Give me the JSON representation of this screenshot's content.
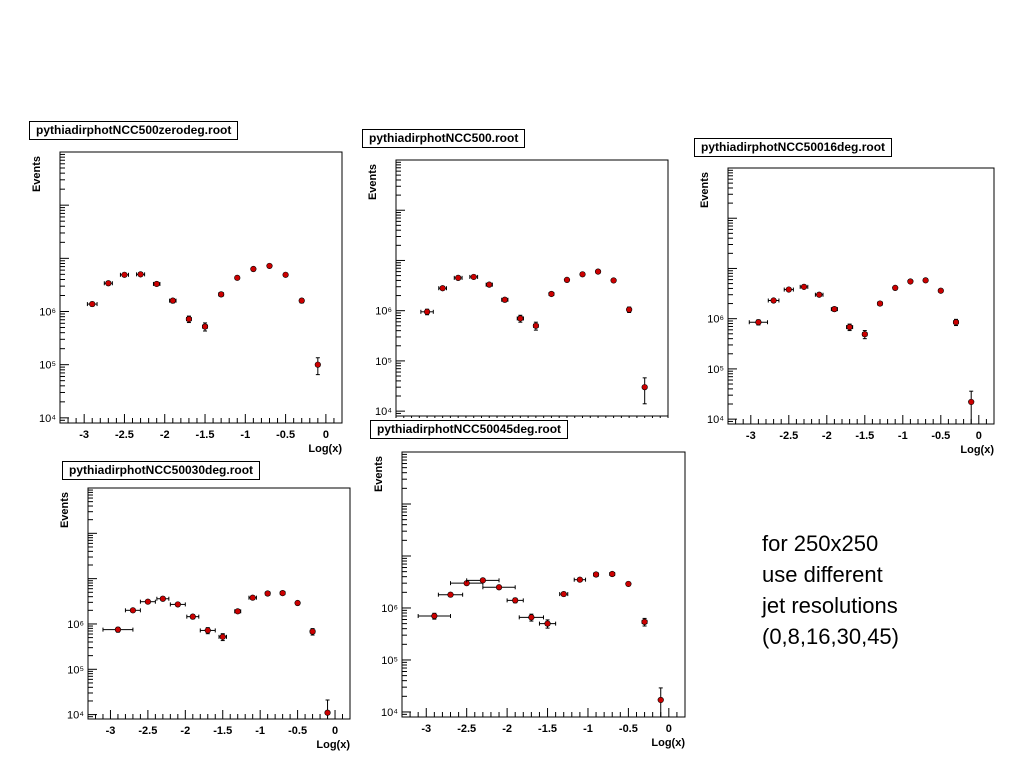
{
  "note": {
    "lines": [
      "for 250x250",
      "use different",
      "jet resolutions",
      "(0,8,16,30,45)"
    ]
  },
  "chart_data": [
    {
      "type": "scatter",
      "title": "pythiadirphotNCC500zerodeg.root",
      "xlabel": "Log(x)",
      "ylabel": "Events",
      "xlim": [
        -3.3,
        0.2
      ],
      "ylim": [
        8000,
        1000000000
      ],
      "yscale": "log",
      "xticks": [
        -3,
        -2.5,
        -2,
        -1.5,
        -1,
        -0.5,
        0
      ],
      "yticks": [
        {
          "value": 10000,
          "label": "10⁴"
        },
        {
          "value": 100000,
          "label": "10⁵"
        },
        {
          "value": 1000000,
          "label": "10⁶"
        }
      ],
      "marker_color": "#cc0000",
      "points": [
        {
          "x": -2.9,
          "y": 1380000,
          "xerr": 0.06,
          "yerr": 120000
        },
        {
          "x": -2.7,
          "y": 3400000,
          "xerr": 0.05,
          "yerr": 200000
        },
        {
          "x": -2.5,
          "y": 4900000,
          "xerr": 0.05,
          "yerr": 250000
        },
        {
          "x": -2.3,
          "y": 5000000,
          "xerr": 0.05,
          "yerr": 250000
        },
        {
          "x": -2.1,
          "y": 3300000,
          "xerr": 0.04,
          "yerr": 180000
        },
        {
          "x": -1.9,
          "y": 1600000,
          "xerr": 0.04,
          "yerr": 150000
        },
        {
          "x": -1.7,
          "y": 720000,
          "xerr": 0.03,
          "yerr": 100000
        },
        {
          "x": -1.5,
          "y": 520000,
          "xerr": 0.03,
          "yerr": 90000
        },
        {
          "x": -1.3,
          "y": 2100000,
          "xerr": 0.03,
          "yerr": 150000
        },
        {
          "x": -1.1,
          "y": 4300000,
          "xerr": 0.02,
          "yerr": 200000
        },
        {
          "x": -0.9,
          "y": 6300000,
          "xerr": 0.02,
          "yerr": 250000
        },
        {
          "x": -0.7,
          "y": 7200000,
          "xerr": 0.02,
          "yerr": 250000
        },
        {
          "x": -0.5,
          "y": 4900000,
          "xerr": 0.02,
          "yerr": 200000
        },
        {
          "x": -0.3,
          "y": 1600000,
          "xerr": 0.02,
          "yerr": 150000
        },
        {
          "x": -0.1,
          "y": 100000,
          "xerr": 0.01,
          "yerr": 35000
        }
      ]
    },
    {
      "type": "scatter",
      "title": "pythiadirphotNCC500.root",
      "xlabel": "",
      "ylabel": "Events",
      "xlim": [
        -3.3,
        0.2
      ],
      "ylim": [
        8000,
        1000000000
      ],
      "yscale": "log",
      "xticks": [],
      "yticks": [
        {
          "value": 10000,
          "label": "10⁴"
        },
        {
          "value": 100000,
          "label": "10⁵"
        },
        {
          "value": 1000000,
          "label": "10⁶"
        }
      ],
      "marker_color": "#cc0000",
      "points": [
        {
          "x": -2.9,
          "y": 950000,
          "xerr": 0.08,
          "yerr": 120000
        },
        {
          "x": -2.7,
          "y": 2800000,
          "xerr": 0.05,
          "yerr": 200000
        },
        {
          "x": -2.5,
          "y": 4500000,
          "xerr": 0.05,
          "yerr": 250000
        },
        {
          "x": -2.3,
          "y": 4700000,
          "xerr": 0.05,
          "yerr": 250000
        },
        {
          "x": -2.1,
          "y": 3300000,
          "xerr": 0.04,
          "yerr": 180000
        },
        {
          "x": -1.9,
          "y": 1650000,
          "xerr": 0.04,
          "yerr": 150000
        },
        {
          "x": -1.7,
          "y": 700000,
          "xerr": 0.04,
          "yerr": 110000
        },
        {
          "x": -1.5,
          "y": 500000,
          "xerr": 0.03,
          "yerr": 90000
        },
        {
          "x": -1.3,
          "y": 2150000,
          "xerr": 0.03,
          "yerr": 150000
        },
        {
          "x": -1.1,
          "y": 4100000,
          "xerr": 0.02,
          "yerr": 200000
        },
        {
          "x": -0.9,
          "y": 5300000,
          "xerr": 0.02,
          "yerr": 250000
        },
        {
          "x": -0.7,
          "y": 6000000,
          "xerr": 0.02,
          "yerr": 250000
        },
        {
          "x": -0.5,
          "y": 4000000,
          "xerr": 0.02,
          "yerr": 200000
        },
        {
          "x": -0.3,
          "y": 1050000,
          "xerr": 0.02,
          "yerr": 130000
        },
        {
          "x": -0.1,
          "y": 30000,
          "xerr": 0.01,
          "yerr": 16000
        }
      ]
    },
    {
      "type": "scatter",
      "title": "pythiadirphotNCC50016deg.root",
      "xlabel": "Log(x)",
      "ylabel": "Events",
      "xlim": [
        -3.3,
        0.2
      ],
      "ylim": [
        8000,
        1000000000
      ],
      "yscale": "log",
      "xticks": [
        -3,
        -2.5,
        -2,
        -1.5,
        -1,
        -0.5,
        0
      ],
      "yticks": [
        {
          "value": 10000,
          "label": "10⁴"
        },
        {
          "value": 100000,
          "label": "10⁵"
        },
        {
          "value": 1000000,
          "label": "10⁶"
        }
      ],
      "marker_color": "#cc0000",
      "points": [
        {
          "x": -2.9,
          "y": 850000,
          "xerr": 0.12,
          "yerr": 100000
        },
        {
          "x": -2.7,
          "y": 2300000,
          "xerr": 0.07,
          "yerr": 180000
        },
        {
          "x": -2.5,
          "y": 3800000,
          "xerr": 0.06,
          "yerr": 220000
        },
        {
          "x": -2.3,
          "y": 4300000,
          "xerr": 0.05,
          "yerr": 240000
        },
        {
          "x": -2.1,
          "y": 3000000,
          "xerr": 0.05,
          "yerr": 180000
        },
        {
          "x": -1.9,
          "y": 1550000,
          "xerr": 0.04,
          "yerr": 150000
        },
        {
          "x": -1.7,
          "y": 680000,
          "xerr": 0.04,
          "yerr": 100000
        },
        {
          "x": -1.5,
          "y": 490000,
          "xerr": 0.03,
          "yerr": 90000
        },
        {
          "x": -1.3,
          "y": 2000000,
          "xerr": 0.03,
          "yerr": 150000
        },
        {
          "x": -1.1,
          "y": 4100000,
          "xerr": 0.02,
          "yerr": 200000
        },
        {
          "x": -0.9,
          "y": 5500000,
          "xerr": 0.02,
          "yerr": 250000
        },
        {
          "x": -0.7,
          "y": 5800000,
          "xerr": 0.02,
          "yerr": 250000
        },
        {
          "x": -0.5,
          "y": 3600000,
          "xerr": 0.02,
          "yerr": 200000
        },
        {
          "x": -0.3,
          "y": 850000,
          "xerr": 0.03,
          "yerr": 120000
        },
        {
          "x": -0.1,
          "y": 22000,
          "xerr": 0.01,
          "yerr": 14000
        }
      ]
    },
    {
      "type": "scatter",
      "title": "pythiadirphotNCC50030deg.root",
      "xlabel": "Log(x)",
      "ylabel": "Events",
      "xlim": [
        -3.3,
        0.2
      ],
      "ylim": [
        8000,
        1000000000
      ],
      "yscale": "log",
      "xticks": [
        -3,
        -2.5,
        -2,
        -1.5,
        -1,
        -0.5,
        0
      ],
      "yticks": [
        {
          "value": 10000,
          "label": "10⁴"
        },
        {
          "value": 100000,
          "label": "10⁵"
        },
        {
          "value": 1000000,
          "label": "10⁶"
        }
      ],
      "marker_color": "#cc0000",
      "points": [
        {
          "x": -2.9,
          "y": 750000,
          "xerr": 0.2,
          "yerr": 90000
        },
        {
          "x": -2.7,
          "y": 2000000,
          "xerr": 0.1,
          "yerr": 150000
        },
        {
          "x": -2.5,
          "y": 3100000,
          "xerr": 0.1,
          "yerr": 200000
        },
        {
          "x": -2.3,
          "y": 3600000,
          "xerr": 0.08,
          "yerr": 220000
        },
        {
          "x": -2.1,
          "y": 2700000,
          "xerr": 0.1,
          "yerr": 180000
        },
        {
          "x": -1.9,
          "y": 1450000,
          "xerr": 0.08,
          "yerr": 150000
        },
        {
          "x": -1.7,
          "y": 720000,
          "xerr": 0.1,
          "yerr": 110000
        },
        {
          "x": -1.5,
          "y": 520000,
          "xerr": 0.05,
          "yerr": 90000
        },
        {
          "x": -1.3,
          "y": 1900000,
          "xerr": 0.04,
          "yerr": 150000
        },
        {
          "x": -1.1,
          "y": 3800000,
          "xerr": 0.05,
          "yerr": 200000
        },
        {
          "x": -0.9,
          "y": 4700000,
          "xerr": 0.03,
          "yerr": 250000
        },
        {
          "x": -0.7,
          "y": 4800000,
          "xerr": 0.03,
          "yerr": 250000
        },
        {
          "x": -0.5,
          "y": 2900000,
          "xerr": 0.02,
          "yerr": 200000
        },
        {
          "x": -0.3,
          "y": 680000,
          "xerr": 0.03,
          "yerr": 110000
        },
        {
          "x": -0.1,
          "y": 11000,
          "xerr": 0.01,
          "yerr": 10000
        }
      ]
    },
    {
      "type": "scatter",
      "title": "pythiadirphotNCC50045deg.root",
      "xlabel": "Log(x)",
      "ylabel": "Events",
      "xlim": [
        -3.3,
        0.2
      ],
      "ylim": [
        8000,
        1000000000
      ],
      "yscale": "log",
      "xticks": [
        -3,
        -2.5,
        -2,
        -1.5,
        -1,
        -0.5,
        0
      ],
      "yticks": [
        {
          "value": 10000,
          "label": "10⁴"
        },
        {
          "value": 100000,
          "label": "10⁵"
        },
        {
          "value": 1000000,
          "label": "10⁶"
        }
      ],
      "marker_color": "#cc0000",
      "points": [
        {
          "x": -2.9,
          "y": 700000,
          "xerr": 0.2,
          "yerr": 90000
        },
        {
          "x": -2.7,
          "y": 1800000,
          "xerr": 0.15,
          "yerr": 150000
        },
        {
          "x": -2.5,
          "y": 3000000,
          "xerr": 0.2,
          "yerr": 200000
        },
        {
          "x": -2.3,
          "y": 3400000,
          "xerr": 0.2,
          "yerr": 220000
        },
        {
          "x": -2.1,
          "y": 2500000,
          "xerr": 0.2,
          "yerr": 180000
        },
        {
          "x": -1.9,
          "y": 1400000,
          "xerr": 0.1,
          "yerr": 140000
        },
        {
          "x": -1.7,
          "y": 660000,
          "xerr": 0.15,
          "yerr": 100000
        },
        {
          "x": -1.5,
          "y": 500000,
          "xerr": 0.1,
          "yerr": 90000
        },
        {
          "x": -1.3,
          "y": 1850000,
          "xerr": 0.05,
          "yerr": 150000
        },
        {
          "x": -1.1,
          "y": 3500000,
          "xerr": 0.07,
          "yerr": 200000
        },
        {
          "x": -0.9,
          "y": 4400000,
          "xerr": 0.03,
          "yerr": 250000
        },
        {
          "x": -0.7,
          "y": 4500000,
          "xerr": 0.03,
          "yerr": 250000
        },
        {
          "x": -0.5,
          "y": 2900000,
          "xerr": 0.02,
          "yerr": 200000
        },
        {
          "x": -0.3,
          "y": 540000,
          "xerr": 0.03,
          "yerr": 90000
        },
        {
          "x": -0.1,
          "y": 17000,
          "xerr": 0.01,
          "yerr": 12000
        }
      ]
    }
  ]
}
